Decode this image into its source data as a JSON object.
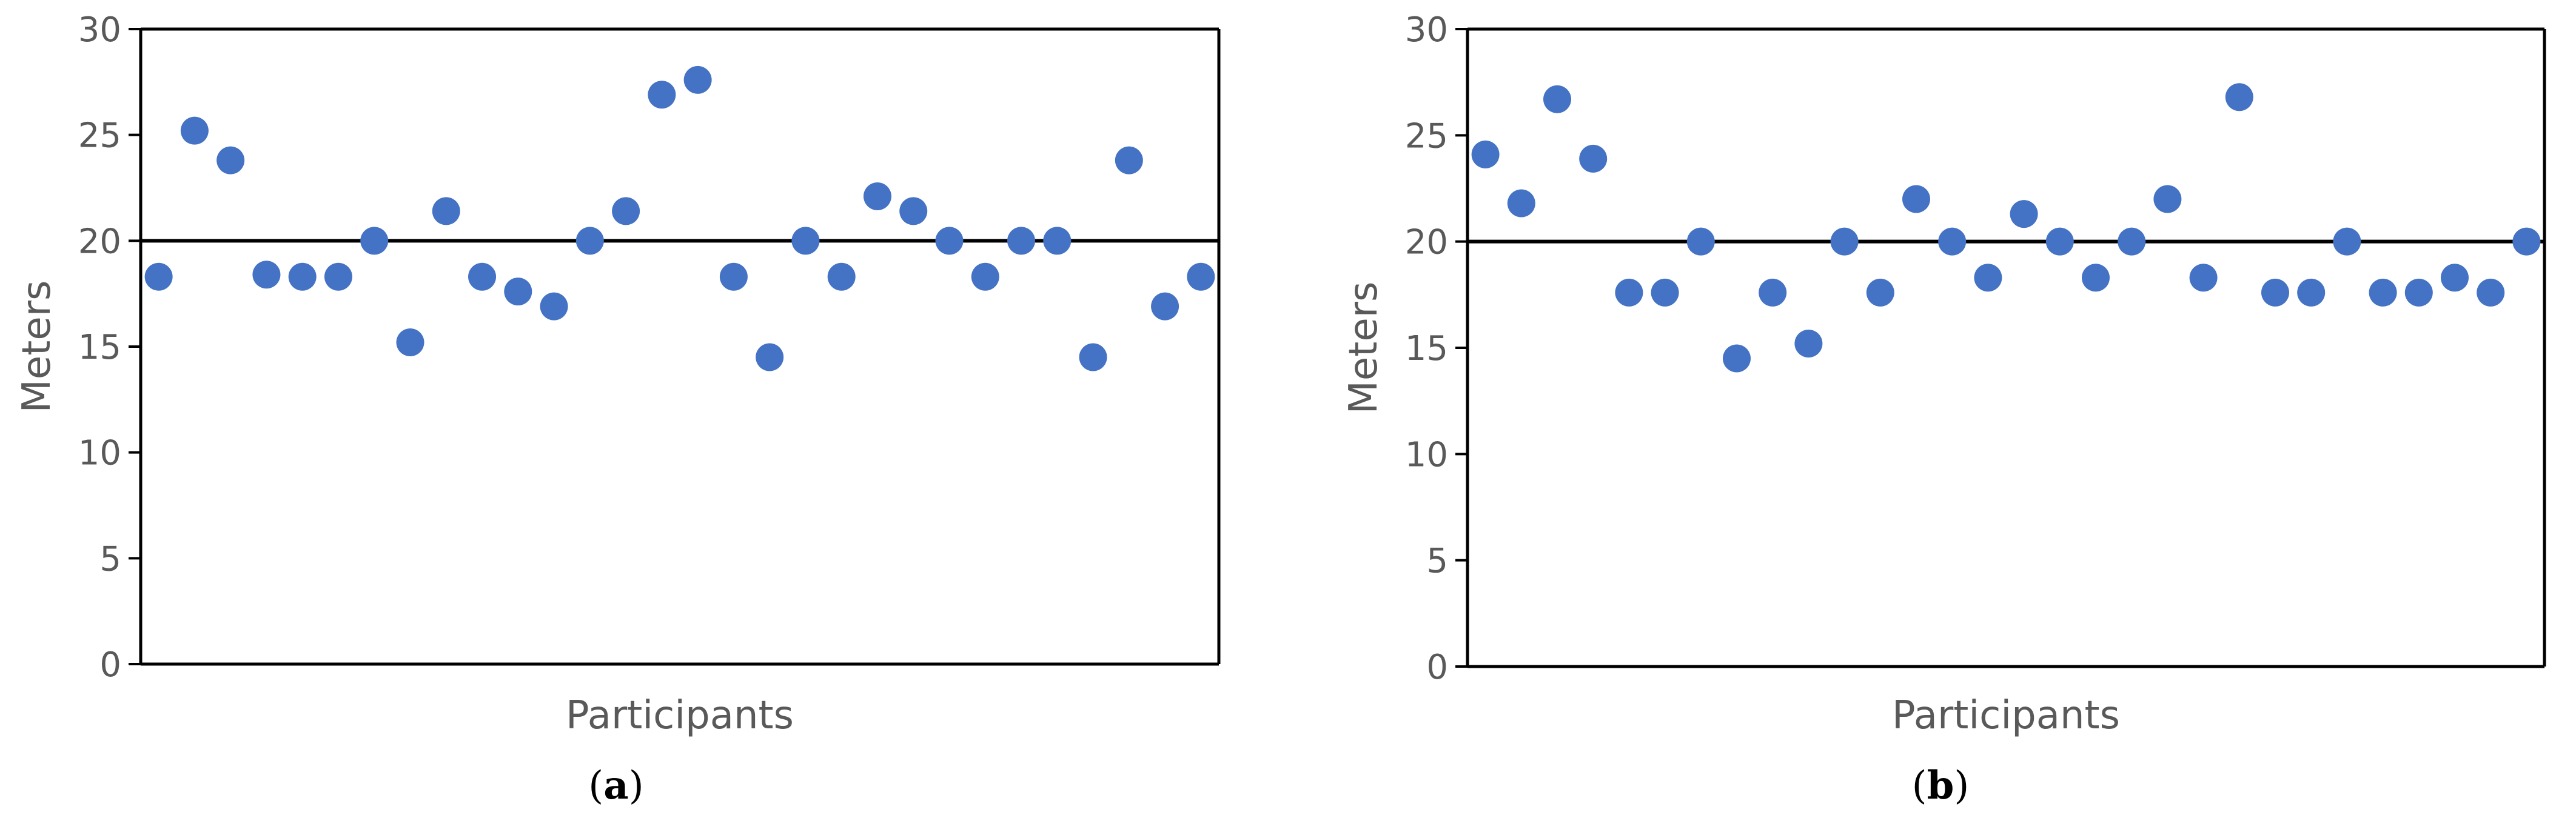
{
  "chart_data": [
    {
      "type": "scatter",
      "panel_label": "a",
      "xlabel": "Participants",
      "ylabel": "Meters",
      "ylim": [
        0,
        30
      ],
      "yticks": [
        0,
        5,
        10,
        15,
        20,
        25,
        30
      ],
      "reference_line": 20,
      "marker_color": "#4472C4",
      "grid": false,
      "series": [
        {
          "x": [
            1,
            2,
            3,
            4,
            5,
            6,
            7,
            8,
            9,
            10,
            11,
            12,
            13,
            14,
            15,
            16,
            17,
            18,
            19,
            20,
            21,
            22,
            23,
            24,
            25,
            26,
            27,
            28,
            29,
            30
          ],
          "values": [
            18.3,
            25.2,
            23.8,
            18.4,
            18.3,
            18.3,
            20.0,
            15.2,
            21.4,
            18.3,
            17.6,
            16.9,
            20.0,
            21.4,
            26.9,
            27.6,
            18.3,
            14.5,
            20.0,
            18.3,
            22.1,
            21.4,
            20.0,
            18.3,
            20.0,
            20.0,
            14.5,
            23.8,
            16.9,
            18.3
          ]
        }
      ]
    },
    {
      "type": "scatter",
      "panel_label": "b",
      "xlabel": "Participants",
      "ylabel": "Meters",
      "ylim": [
        0,
        30
      ],
      "yticks": [
        0,
        5,
        10,
        15,
        20,
        25,
        30
      ],
      "reference_line": 20,
      "marker_color": "#4472C4",
      "grid": false,
      "series": [
        {
          "x": [
            1,
            2,
            3,
            4,
            5,
            6,
            7,
            8,
            9,
            10,
            11,
            12,
            13,
            14,
            15,
            16,
            17,
            18,
            19,
            20,
            21,
            22,
            23,
            24,
            25,
            26,
            27,
            28,
            29,
            30
          ],
          "values": [
            24.1,
            21.8,
            26.7,
            23.9,
            17.6,
            17.6,
            20.0,
            14.5,
            17.6,
            15.2,
            20.0,
            17.6,
            22.0,
            20.0,
            18.3,
            21.3,
            20.0,
            18.3,
            20.0,
            22.0,
            18.3,
            26.8,
            17.6,
            17.6,
            20.0,
            17.6,
            17.6,
            18.3,
            17.6,
            20.0
          ]
        }
      ]
    }
  ]
}
